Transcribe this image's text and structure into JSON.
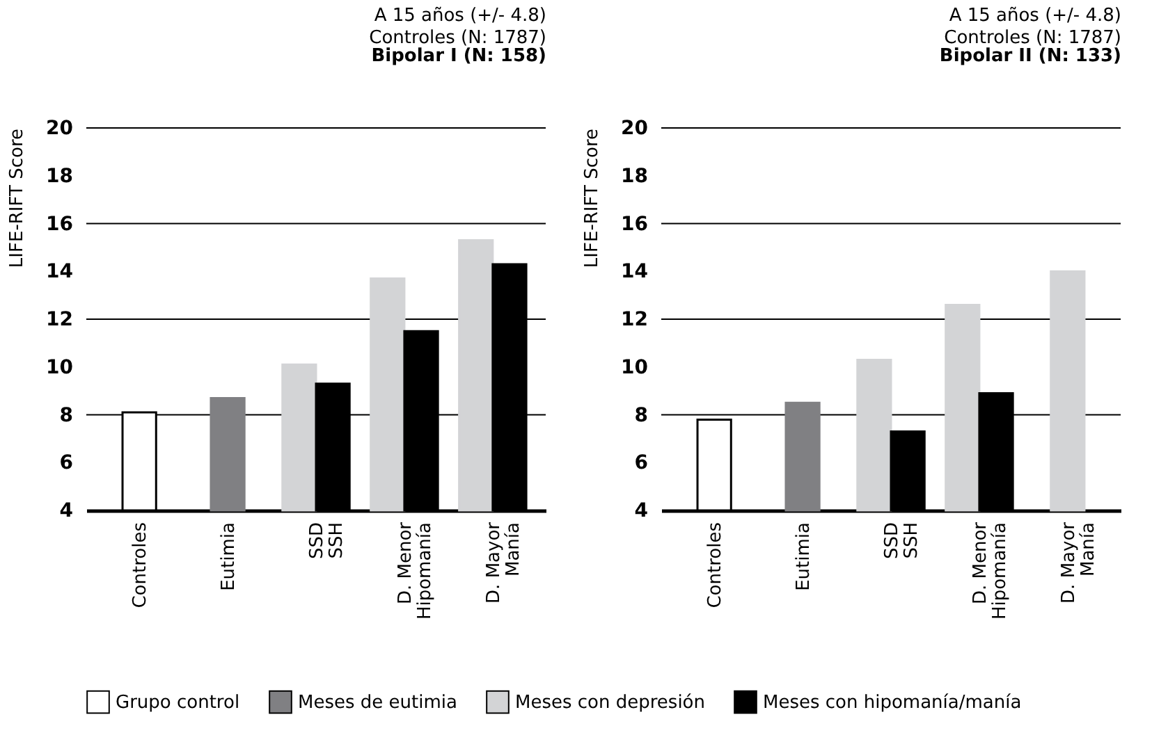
{
  "chart_data": [
    {
      "type": "bar",
      "title": "Bipolar I (N: 158)",
      "annotations": [
        "A 15 años (+/- 4.8)",
        "Controles (N: 1787)"
      ],
      "ylabel": "LIFE-RIFT Score",
      "categories": [
        "Controles",
        "Eutimia",
        "SSD\nSSH",
        "D. Menor\nHipomanía",
        "D. Mayor\nManía"
      ],
      "series": [
        {
          "name": "Grupo control",
          "color": "#ffffff",
          "values": [
            8.1,
            null,
            null,
            null,
            null
          ]
        },
        {
          "name": "Meses de eutimia",
          "color": "#808083",
          "values": [
            null,
            8.7,
            null,
            null,
            null
          ]
        },
        {
          "name": "Meses con depresión",
          "color": "#d3d4d6",
          "values": [
            null,
            null,
            10.1,
            13.7,
            15.3
          ]
        },
        {
          "name": "Meses con hipomanía/manía",
          "color": "#000000",
          "values": [
            null,
            null,
            9.3,
            11.5,
            14.3
          ]
        }
      ],
      "ylim": [
        4,
        20
      ],
      "yticks": [
        4,
        6,
        8,
        10,
        12,
        14,
        16,
        18,
        20
      ],
      "grid": "y",
      "legend": "bottom"
    },
    {
      "type": "bar",
      "title": "Bipolar II (N: 133)",
      "annotations": [
        "A 15 años (+/- 4.8)",
        "Controles (N: 1787)"
      ],
      "ylabel": "LIFE-RIFT Score",
      "categories": [
        "Controles",
        "Eutimia",
        "SSD\nSSH",
        "D. Menor\nHipomanía",
        "D. Mayor\nManía"
      ],
      "series": [
        {
          "name": "Grupo control",
          "color": "#ffffff",
          "values": [
            7.8,
            null,
            null,
            null,
            null
          ]
        },
        {
          "name": "Meses de eutimia",
          "color": "#808083",
          "values": [
            null,
            8.5,
            null,
            null,
            null
          ]
        },
        {
          "name": "Meses con depresión",
          "color": "#d3d4d6",
          "values": [
            null,
            null,
            10.3,
            12.6,
            14.0
          ]
        },
        {
          "name": "Meses con hipomanía/manía",
          "color": "#000000",
          "values": [
            null,
            null,
            7.3,
            8.9,
            null
          ]
        }
      ],
      "ylim": [
        4,
        20
      ],
      "yticks": [
        4,
        6,
        8,
        10,
        12,
        14,
        16,
        18,
        20
      ],
      "grid": "y",
      "legend": "bottom"
    }
  ]
}
